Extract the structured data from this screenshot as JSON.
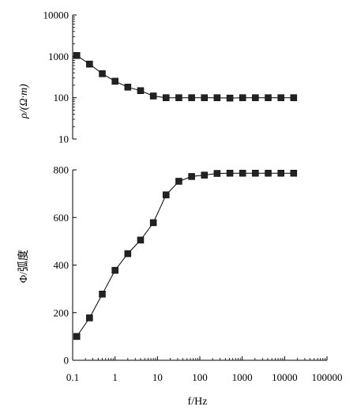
{
  "chart_data": [
    {
      "type": "scatter",
      "ylabel": "ρ/(Ω·m)",
      "xscale": "log",
      "yscale": "log",
      "xlim": [
        0.1,
        100000
      ],
      "ylim": [
        10,
        10000
      ],
      "yticks": [
        "10",
        "100",
        "1000",
        "10000"
      ],
      "series": [
        {
          "x": [
            0.125,
            0.25,
            0.5,
            1,
            2,
            4,
            8,
            16,
            32,
            64,
            128,
            256,
            512,
            1024,
            2048,
            4096,
            8192,
            16384
          ],
          "values": [
            1050,
            650,
            380,
            250,
            180,
            148,
            110,
            100,
            100,
            100,
            100,
            100,
            98,
            100,
            100,
            100,
            100,
            100
          ]
        }
      ]
    },
    {
      "type": "scatter",
      "xlabel": "f/Hz",
      "ylabel": "Φ/弧度",
      "xscale": "log",
      "xlim": [
        0.1,
        100000
      ],
      "ylim": [
        0,
        800
      ],
      "xticks": [
        "0.1",
        "1",
        "10",
        "100",
        "1000",
        "10000",
        "100000"
      ],
      "yticks": [
        "0",
        "200",
        "400",
        "600",
        "800"
      ],
      "series": [
        {
          "x": [
            0.125,
            0.25,
            0.5,
            1,
            2,
            4,
            8,
            16,
            32,
            64,
            128,
            256,
            512,
            1024,
            2048,
            4096,
            8192,
            16384
          ],
          "values": [
            100,
            178,
            278,
            378,
            448,
            505,
            578,
            695,
            752,
            772,
            778,
            785,
            786,
            786,
            786,
            786,
            786,
            786
          ]
        }
      ]
    }
  ]
}
